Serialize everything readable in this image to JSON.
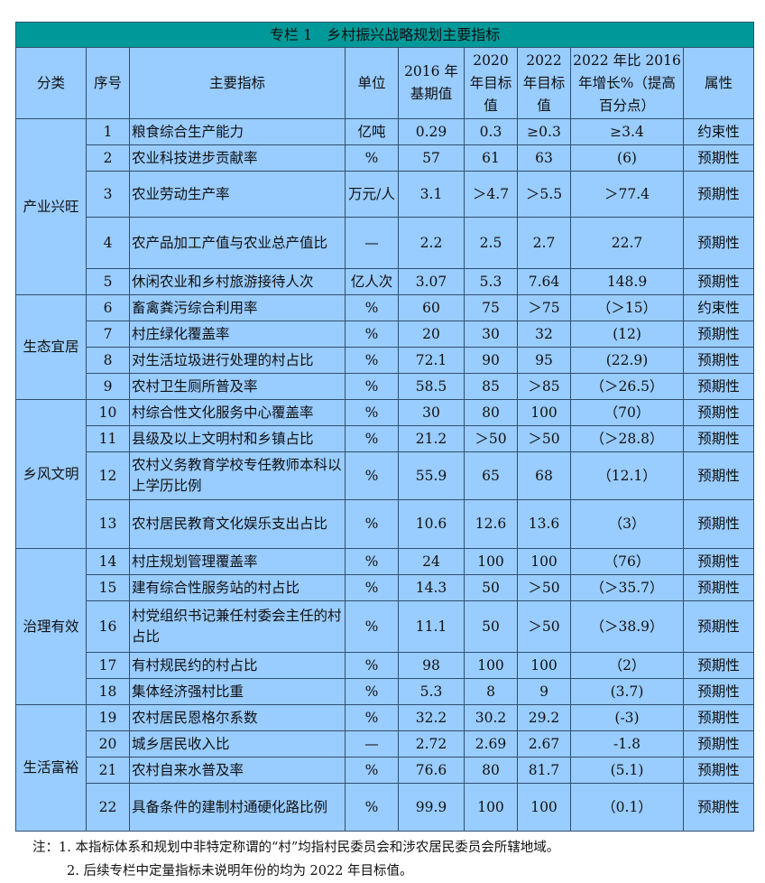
{
  "title": "专栏 1　乡村振兴战略规划主要指标",
  "headers": [
    "分类",
    "序号",
    "主要指标",
    "单位",
    "2016 年基期值",
    "2020 年目标值",
    "2022 年目标值",
    "2022 年比 2016 年增长%（提高百分点）",
    "属性"
  ],
  "groups": [
    {
      "name": "产业兴旺",
      "rows": [
        [
          "1",
          "粮食综合生产能力",
          "亿吨",
          "0.29",
          "0.3",
          "≥0.3",
          "≥3.4",
          "约束性"
        ],
        [
          "2",
          "农业科技进步贡献率",
          "%",
          "57",
          "61",
          "63",
          "(6)",
          "预期性"
        ],
        [
          "3",
          "农业劳动生产率",
          "万元/人",
          "3.1",
          "＞4.7",
          "＞5.5",
          "＞77.4",
          "预期性"
        ],
        [
          "4",
          "农产品加工产值与农业总产值比",
          "—",
          "2.2",
          "2.5",
          "2.7",
          "22.7",
          "预期性"
        ],
        [
          "5",
          "休闲农业和乡村旅游接待人次",
          "亿人次",
          "3.07",
          "5.3",
          "7.64",
          "148.9",
          "预期性"
        ]
      ]
    },
    {
      "name": "生态宜居",
      "rows": [
        [
          "6",
          "畜禽粪污综合利用率",
          "%",
          "60",
          "75",
          "＞75",
          "（＞15）",
          "约束性"
        ],
        [
          "7",
          "村庄绿化覆盖率",
          "%",
          "20",
          "30",
          "32",
          "(12)",
          "预期性"
        ],
        [
          "8",
          "对生活垃圾进行处理的村占比",
          "%",
          "72.1",
          "90",
          "95",
          "(22.9)",
          "预期性"
        ],
        [
          "9",
          "农村卫生厕所普及率",
          "%",
          "58.5",
          "85",
          "＞85",
          "（＞26.5）",
          "预期性"
        ]
      ]
    },
    {
      "name": "乡风文明",
      "rows": [
        [
          "10",
          "村综合性文化服务中心覆盖率",
          "%",
          "30",
          "80",
          "100",
          "（70）",
          "预期性"
        ],
        [
          "11",
          "县级及以上文明村和乡镇占比",
          "%",
          "21.2",
          "＞50",
          "＞50",
          "（＞28.8）",
          "预期性"
        ],
        [
          "12",
          "农村义务教育学校专任教师本科以上学历比例",
          "%",
          "55.9",
          "65",
          "68",
          "（12.1）",
          "预期性"
        ],
        [
          "13",
          "农村居民教育文化娱乐支出占比",
          "%",
          "10.6",
          "12.6",
          "13.6",
          "（3）",
          "预期性"
        ]
      ]
    },
    {
      "name": "治理有效",
      "rows": [
        [
          "14",
          "村庄规划管理覆盖率",
          "%",
          "24",
          "100",
          "100",
          "（76）",
          "预期性"
        ],
        [
          "15",
          "建有综合性服务站的村占比",
          "%",
          "14.3",
          "50",
          "＞50",
          "（＞35.7）",
          "预期性"
        ],
        [
          "16",
          "村党组织书记兼任村委会主任的村占比",
          "%",
          "11.1",
          "50",
          "＞50",
          "（＞38.9）",
          "预期性"
        ],
        [
          "17",
          "有村规民约的村占比",
          "%",
          "98",
          "100",
          "100",
          "（2）",
          "预期性"
        ],
        [
          "18",
          "集体经济强村比重",
          "%",
          "5.3",
          "8",
          "9",
          "(3.7)",
          "预期性"
        ]
      ]
    },
    {
      "name": "生活富裕",
      "rows": [
        [
          "19",
          "农村居民恩格尔系数",
          "%",
          "32.2",
          "30.2",
          "29.2",
          "(-3)",
          "预期性"
        ],
        [
          "20",
          "城乡居民收入比",
          "—",
          "2.72",
          "2.69",
          "2.67",
          "-1.8",
          "预期性"
        ],
        [
          "21",
          "农村自来水普及率",
          "%",
          "76.6",
          "80",
          "81.7",
          "(5.1)",
          "预期性"
        ],
        [
          "22",
          "具备条件的建制村通硬化路比例",
          "%",
          "99.9",
          "100",
          "100",
          "（0.1）",
          "预期性"
        ]
      ]
    }
  ],
  "notes": [
    "注：1. 本指标体系和规划中非特定称谓的“村”均指村民委员会和涉农居民委员会所辖地域。",
    "2. 后续专栏中定量指标未说明年份的均为 2022 年目标值。"
  ]
}
